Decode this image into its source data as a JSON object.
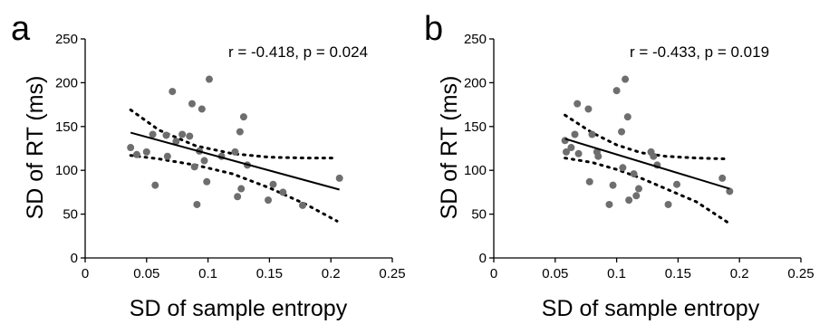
{
  "chart_data": [
    {
      "panel": "a",
      "type": "scatter",
      "xlabel": "SD of sample entropy",
      "ylabel": "SD of RT (ms)",
      "annotation": "r = -0.418, p = 0.024",
      "xlim": [
        0,
        0.25
      ],
      "ylim": [
        0,
        250
      ],
      "xticks": [
        "0",
        "0.05",
        "0.1",
        "0.15",
        "0.2",
        "0.25"
      ],
      "yticks": [
        "0",
        "50",
        "100",
        "150",
        "200",
        "250"
      ],
      "points": [
        {
          "x": 0.037,
          "y": 126
        },
        {
          "x": 0.042,
          "y": 118
        },
        {
          "x": 0.05,
          "y": 121
        },
        {
          "x": 0.055,
          "y": 141
        },
        {
          "x": 0.057,
          "y": 83
        },
        {
          "x": 0.066,
          "y": 140
        },
        {
          "x": 0.067,
          "y": 116
        },
        {
          "x": 0.071,
          "y": 190
        },
        {
          "x": 0.074,
          "y": 133
        },
        {
          "x": 0.079,
          "y": 141
        },
        {
          "x": 0.085,
          "y": 139
        },
        {
          "x": 0.087,
          "y": 176
        },
        {
          "x": 0.089,
          "y": 104
        },
        {
          "x": 0.091,
          "y": 61
        },
        {
          "x": 0.093,
          "y": 122
        },
        {
          "x": 0.095,
          "y": 170
        },
        {
          "x": 0.097,
          "y": 111
        },
        {
          "x": 0.099,
          "y": 87
        },
        {
          "x": 0.101,
          "y": 204
        },
        {
          "x": 0.111,
          "y": 116
        },
        {
          "x": 0.122,
          "y": 121
        },
        {
          "x": 0.124,
          "y": 70
        },
        {
          "x": 0.126,
          "y": 144
        },
        {
          "x": 0.127,
          "y": 79
        },
        {
          "x": 0.129,
          "y": 161
        },
        {
          "x": 0.132,
          "y": 106
        },
        {
          "x": 0.149,
          "y": 66
        },
        {
          "x": 0.153,
          "y": 84
        },
        {
          "x": 0.161,
          "y": 75
        },
        {
          "x": 0.177,
          "y": 60
        },
        {
          "x": 0.207,
          "y": 91
        }
      ],
      "fit": {
        "x": [
          0.037,
          0.207
        ],
        "y": [
          143,
          78
        ]
      },
      "ci_upper": {
        "x": [
          0.037,
          0.06,
          0.09,
          0.12,
          0.15,
          0.18,
          0.205
        ],
        "y": [
          169,
          146,
          128,
          119,
          115,
          114,
          114
        ]
      },
      "ci_lower": {
        "x": [
          0.037,
          0.06,
          0.09,
          0.12,
          0.15,
          0.18,
          0.205
        ],
        "y": [
          117,
          113,
          106,
          96,
          80,
          61,
          42
        ]
      }
    },
    {
      "panel": "b",
      "type": "scatter",
      "xlabel": "SD of sample entropy",
      "ylabel": "SD of RT (ms)",
      "annotation": "r = -0.433, p = 0.019",
      "xlim": [
        0,
        0.25
      ],
      "ylim": [
        0,
        250
      ],
      "xticks": [
        "0",
        "0.05",
        "0.1",
        "0.15",
        "0.2",
        "0.25"
      ],
      "yticks": [
        "0",
        "50",
        "100",
        "150",
        "200",
        "250"
      ],
      "points": [
        {
          "x": 0.058,
          "y": 134
        },
        {
          "x": 0.059,
          "y": 121
        },
        {
          "x": 0.063,
          "y": 126
        },
        {
          "x": 0.066,
          "y": 141
        },
        {
          "x": 0.068,
          "y": 176
        },
        {
          "x": 0.069,
          "y": 119
        },
        {
          "x": 0.077,
          "y": 170
        },
        {
          "x": 0.078,
          "y": 87
        },
        {
          "x": 0.08,
          "y": 141
        },
        {
          "x": 0.084,
          "y": 121
        },
        {
          "x": 0.085,
          "y": 116
        },
        {
          "x": 0.094,
          "y": 61
        },
        {
          "x": 0.097,
          "y": 83
        },
        {
          "x": 0.1,
          "y": 191
        },
        {
          "x": 0.104,
          "y": 144
        },
        {
          "x": 0.105,
          "y": 103
        },
        {
          "x": 0.107,
          "y": 204
        },
        {
          "x": 0.109,
          "y": 161
        },
        {
          "x": 0.11,
          "y": 66
        },
        {
          "x": 0.114,
          "y": 96
        },
        {
          "x": 0.116,
          "y": 71
        },
        {
          "x": 0.118,
          "y": 79
        },
        {
          "x": 0.128,
          "y": 121
        },
        {
          "x": 0.13,
          "y": 116
        },
        {
          "x": 0.133,
          "y": 106
        },
        {
          "x": 0.142,
          "y": 61
        },
        {
          "x": 0.149,
          "y": 84
        },
        {
          "x": 0.186,
          "y": 91
        },
        {
          "x": 0.192,
          "y": 76
        }
      ],
      "fit": {
        "x": [
          0.058,
          0.192
        ],
        "y": [
          136,
          79
        ]
      },
      "ci_upper": {
        "x": [
          0.058,
          0.08,
          0.1,
          0.12,
          0.14,
          0.165,
          0.19
        ],
        "y": [
          163,
          143,
          129,
          120,
          116,
          114,
          113
        ]
      },
      "ci_lower": {
        "x": [
          0.058,
          0.08,
          0.1,
          0.12,
          0.14,
          0.165,
          0.19
        ],
        "y": [
          114,
          109,
          101,
          91,
          79,
          64,
          41
        ]
      }
    }
  ]
}
